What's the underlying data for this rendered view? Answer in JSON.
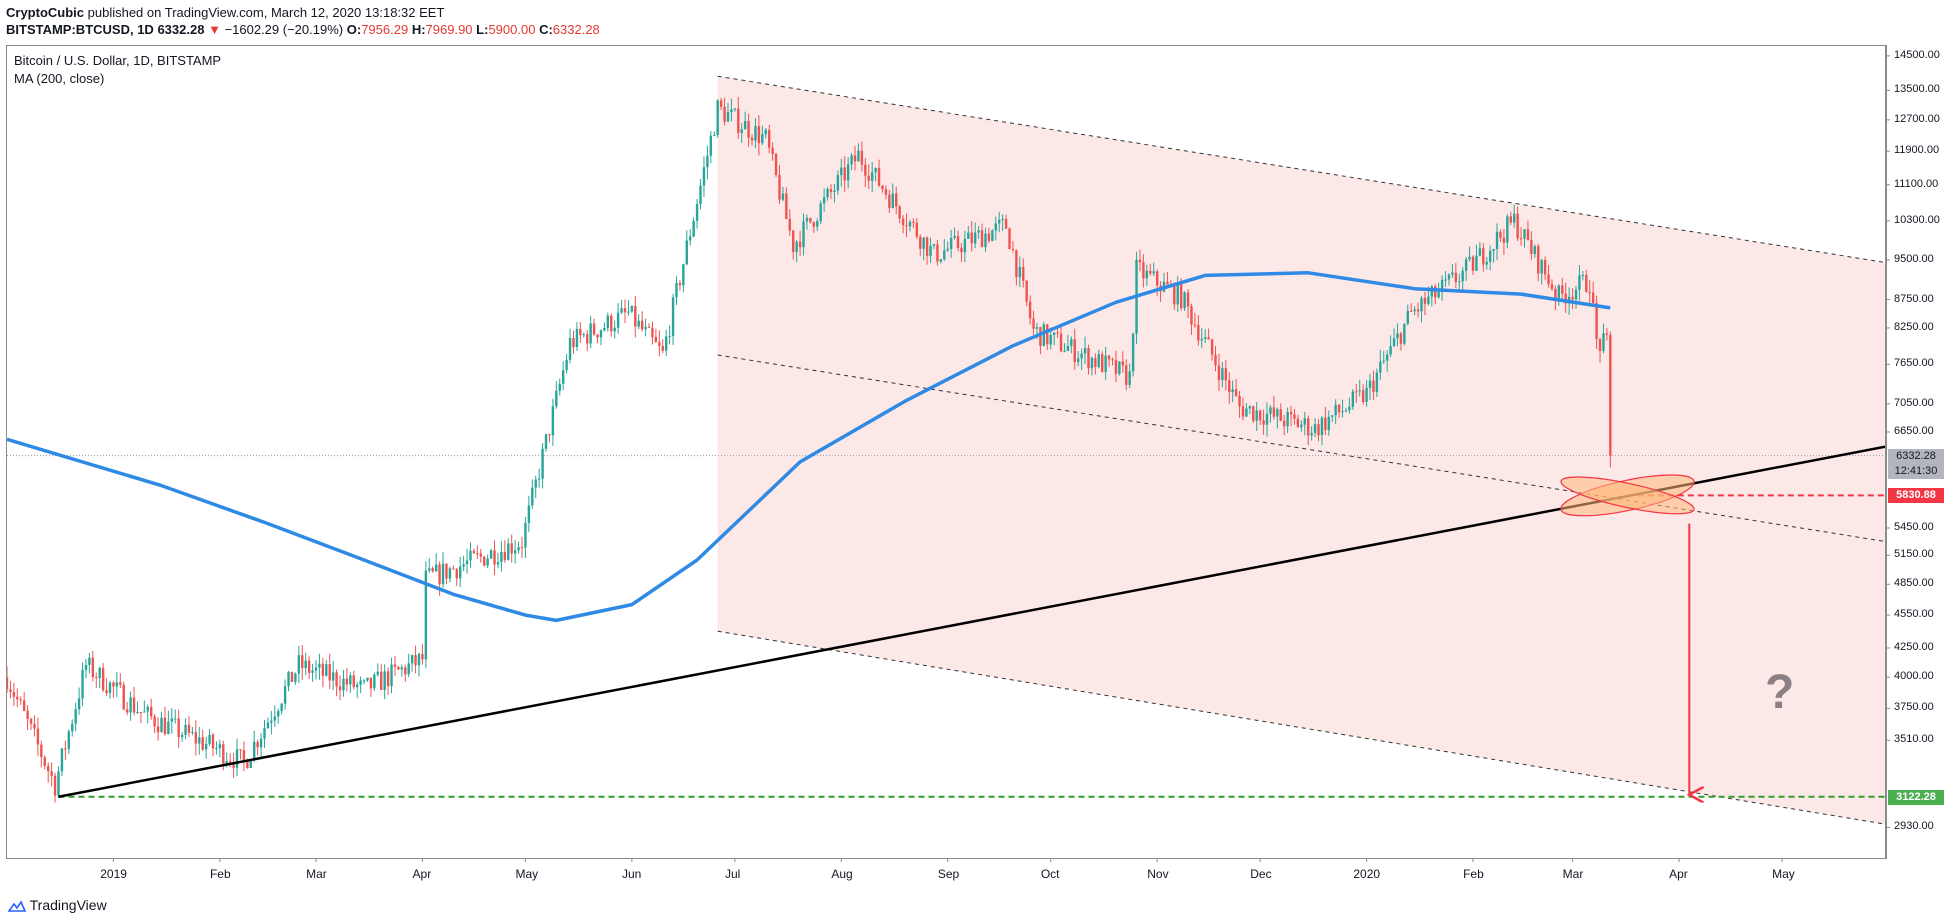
{
  "header": {
    "author": "CryptoCubic",
    "published": "published on TradingView.com, March 12, 2020 13:18:32 EET",
    "symbol": "BITSTAMP:BTCUSD, 1D",
    "last": "6332.28",
    "change": "−1602.29 (−20.19%)",
    "o_label": "O:",
    "o_value": "7956.29",
    "h_label": "H:",
    "h_value": "7969.90",
    "l_label": "L:",
    "l_value": "5900.00",
    "c_label": "C:",
    "c_value": "6332.28"
  },
  "legend": {
    "title": "Bitcoin / U.S. Dollar, 1D, BITSTAMP",
    "indicator": "MA (200, close)"
  },
  "tags": {
    "last_price": "6332.28",
    "countdown": "12:41:30",
    "target_red": "5830.88",
    "target_green": "3122.28"
  },
  "annotation": {
    "question": "?"
  },
  "footer": {
    "brand": "TradingView"
  },
  "colors": {
    "up": "#26a69a",
    "down": "#ef5350",
    "ma": "#2f8ae5",
    "channel": "#fde8e8",
    "trend": "#000000",
    "support": "#2e9e2e",
    "resistance": "#f23645"
  },
  "chart_data": {
    "type": "candlestick",
    "title": "Bitcoin / U.S. Dollar, 1D, BITSTAMP",
    "y_scale": "log",
    "ylim": [
      2750,
      14800
    ],
    "y_ticks": [
      14500,
      13500,
      12700,
      11900,
      11100,
      10300,
      9500,
      8750,
      8250,
      7650,
      7050,
      6650,
      5450,
      5150,
      4850,
      4550,
      4250,
      4000,
      3750,
      3510,
      2930
    ],
    "x_ticks": [
      "2019",
      "Feb",
      "Mar",
      "Apr",
      "May",
      "Jun",
      "Jul",
      "Aug",
      "Sep",
      "Oct",
      "Nov",
      "Dec",
      "2020",
      "Feb",
      "Mar",
      "Apr",
      "May"
    ],
    "x_range": [
      "2018-12-01",
      "2020-05-31"
    ],
    "price_path": [
      [
        "2018-12-01",
        4000
      ],
      [
        "2018-12-15",
        3200
      ],
      [
        "2018-12-24",
        4100
      ],
      [
        "2019-01-10",
        3700
      ],
      [
        "2019-01-31",
        3450
      ],
      [
        "2019-02-08",
        3350
      ],
      [
        "2019-02-24",
        4100
      ],
      [
        "2019-03-15",
        3900
      ],
      [
        "2019-04-01",
        4150
      ],
      [
        "2019-04-02",
        4900
      ],
      [
        "2019-04-30",
        5300
      ],
      [
        "2019-05-14",
        8000
      ],
      [
        "2019-05-31",
        8500
      ],
      [
        "2019-06-10",
        7800
      ],
      [
        "2019-06-26",
        13000
      ],
      [
        "2019-07-10",
        12200
      ],
      [
        "2019-07-18",
        9800
      ],
      [
        "2019-08-06",
        11800
      ],
      [
        "2019-08-28",
        9600
      ],
      [
        "2019-09-18",
        10200
      ],
      [
        "2019-09-26",
        8200
      ],
      [
        "2019-10-24",
        7450
      ],
      [
        "2019-10-26",
        9300
      ],
      [
        "2019-11-08",
        8800
      ],
      [
        "2019-11-25",
        7000
      ],
      [
        "2019-12-17",
        6700
      ],
      [
        "2020-01-01",
        7200
      ],
      [
        "2020-01-14",
        8500
      ],
      [
        "2020-01-31",
        9350
      ],
      [
        "2020-02-13",
        10300
      ],
      [
        "2020-02-26",
        8800
      ],
      [
        "2020-03-06",
        9100
      ],
      [
        "2020-03-08",
        8000
      ],
      [
        "2020-03-11",
        7950
      ],
      [
        "2020-03-12",
        6332.28
      ]
    ],
    "series": [
      {
        "name": "MA (200, close)",
        "points": [
          [
            "2018-12-01",
            6550
          ],
          [
            "2019-01-15",
            5950
          ],
          [
            "2019-02-15",
            5500
          ],
          [
            "2019-03-15",
            5100
          ],
          [
            "2019-04-10",
            4750
          ],
          [
            "2019-05-01",
            4550
          ],
          [
            "2019-05-10",
            4500
          ],
          [
            "2019-06-01",
            4650
          ],
          [
            "2019-06-20",
            5100
          ],
          [
            "2019-07-20",
            6250
          ],
          [
            "2019-08-20",
            7100
          ],
          [
            "2019-09-20",
            7950
          ],
          [
            "2019-10-20",
            8700
          ],
          [
            "2019-11-15",
            9200
          ],
          [
            "2019-12-15",
            9250
          ],
          [
            "2020-01-15",
            8950
          ],
          [
            "2020-02-15",
            8850
          ],
          [
            "2020-03-12",
            8600
          ]
        ]
      }
    ],
    "levels": [
      {
        "value": 6332.28
      },
      {
        "value": 5830.88
      },
      {
        "value": 3122.28
      }
    ],
    "trendline": [
      [
        "2018-12-16",
        3122
      ],
      [
        "2020-05-31",
        6450
      ]
    ],
    "channel": {
      "upper": [
        [
          "2019-06-26",
          13900
        ],
        [
          "2020-05-31",
          9450
        ]
      ],
      "middle": [
        [
          "2019-06-26",
          7800
        ],
        [
          "2020-05-31",
          5300
        ]
      ],
      "lower": [
        [
          "2019-06-26",
          4400
        ],
        [
          "2020-05-31",
          2950
        ]
      ]
    },
    "target_arrow": {
      "from": [
        "2020-04-04",
        5500
      ],
      "to": [
        "2020-04-04",
        3122.28
      ]
    }
  }
}
